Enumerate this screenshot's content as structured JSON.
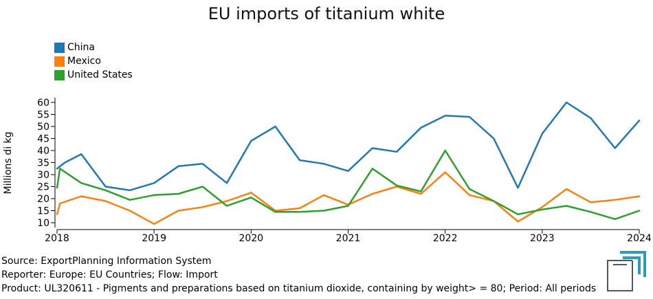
{
  "chart_data": {
    "type": "line",
    "title": "EU imports of titanium white",
    "ylabel": "Millions di kg",
    "xlabel": "",
    "ylim": [
      8,
      62
    ],
    "xlim": [
      2018,
      2024
    ],
    "yticks": [
      10,
      15,
      20,
      25,
      30,
      35,
      40,
      45,
      50,
      55,
      60
    ],
    "xticks": [
      2018,
      2019,
      2020,
      2021,
      2022,
      2023,
      2024
    ],
    "legend_position": "top-left",
    "series": [
      {
        "name": "China",
        "color": "#1f77b4",
        "x": [
          2018.0,
          2018.08,
          2018.25,
          2018.5,
          2018.75,
          2019.0,
          2019.25,
          2019.5,
          2019.75,
          2020.0,
          2020.25,
          2020.5,
          2020.75,
          2021.0,
          2021.25,
          2021.5,
          2021.75,
          2022.0,
          2022.25,
          2022.5,
          2022.75,
          2023.0,
          2023.25,
          2023.5,
          2023.75,
          2024.0
        ],
        "values": [
          32.5,
          35,
          38.5,
          25,
          23.5,
          26.5,
          33.5,
          34.5,
          26.5,
          44,
          50,
          36,
          34.5,
          31.5,
          41,
          39.5,
          49.5,
          54.5,
          54,
          45,
          24.5,
          47,
          60,
          53.5,
          41,
          52.5
        ]
      },
      {
        "name": "Mexico",
        "color": "#ff7f0e",
        "x": [
          2018.0,
          2018.03,
          2018.25,
          2018.5,
          2018.75,
          2019.0,
          2019.25,
          2019.5,
          2019.75,
          2020.0,
          2020.25,
          2020.5,
          2020.75,
          2021.0,
          2021.25,
          2021.5,
          2021.75,
          2022.0,
          2022.25,
          2022.5,
          2022.75,
          2023.0,
          2023.25,
          2023.5,
          2023.75,
          2024.0
        ],
        "values": [
          13.5,
          18,
          21,
          19,
          15,
          9.5,
          15,
          16.5,
          19,
          22.5,
          15,
          16,
          21.5,
          17.5,
          22,
          25,
          22,
          31,
          21.5,
          19,
          10.5,
          16.5,
          24,
          18.5,
          19.5,
          21
        ]
      },
      {
        "name": "United States",
        "color": "#2ca02c",
        "x": [
          2018.0,
          2018.03,
          2018.25,
          2018.5,
          2018.75,
          2019.0,
          2019.25,
          2019.5,
          2019.75,
          2020.0,
          2020.25,
          2020.5,
          2020.75,
          2021.0,
          2021.25,
          2021.5,
          2021.75,
          2022.0,
          2022.25,
          2022.5,
          2022.75,
          2023.0,
          2023.25,
          2023.5,
          2023.75,
          2024.0
        ],
        "values": [
          24.5,
          32.5,
          26.5,
          23.5,
          19.5,
          21.5,
          22,
          25,
          17,
          20.5,
          14.5,
          14.5,
          15,
          17,
          32.5,
          25.5,
          23,
          40,
          24,
          19,
          13.5,
          15.5,
          17,
          14.5,
          11.5,
          15
        ]
      }
    ]
  },
  "footer": {
    "source": "Source: ExportPlanning Information System",
    "reporter": "Reporter: Europe: EU Countries; Flow: Import",
    "product": "Product: UL320611 - Pigments and preparations based on titanium dioxide, containing by weight> = 80; Period: All periods"
  },
  "logo": {
    "icon": "exportplanning-logo-icon",
    "colors": [
      "#2a9bb8",
      "#4a5a63"
    ]
  }
}
